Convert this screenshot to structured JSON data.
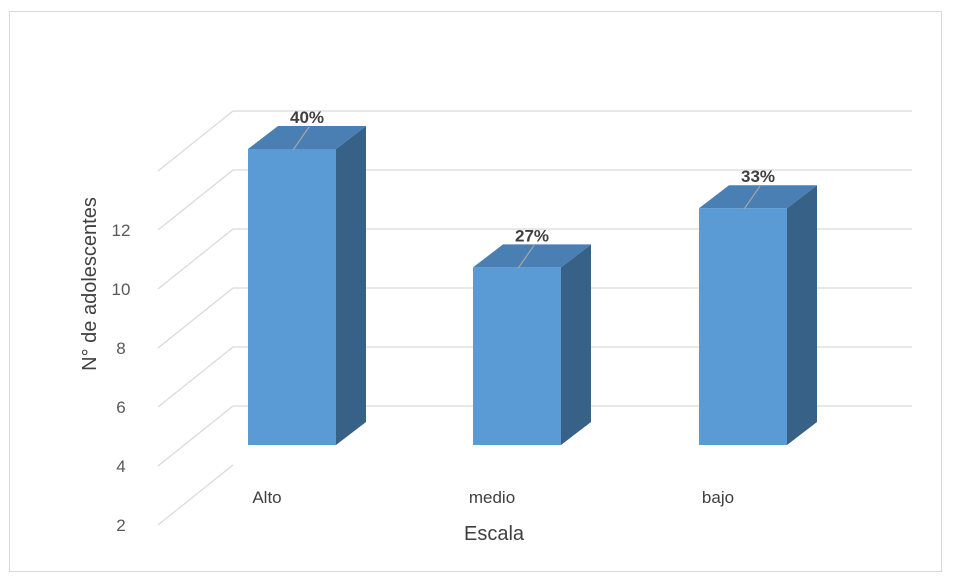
{
  "chart_data": {
    "type": "bar",
    "style": "3d-column",
    "categories": [
      "Alto",
      "medio",
      "bajo"
    ],
    "values": [
      12,
      8,
      10
    ],
    "data_labels": [
      "40%",
      "27%",
      "33%"
    ],
    "xlabel": "Escala",
    "ylabel": "N° de adolescentes",
    "yticks": [
      "2",
      "4",
      "6",
      "8",
      "10",
      "12"
    ],
    "ylim": [
      2,
      14
    ],
    "grid": true,
    "legend": "none",
    "colors": {
      "front": "#5b9bd5",
      "side": "#376187",
      "top": "#4a7fb3",
      "grid": "#d9d9d9",
      "leader": "#a6a6a6"
    }
  }
}
